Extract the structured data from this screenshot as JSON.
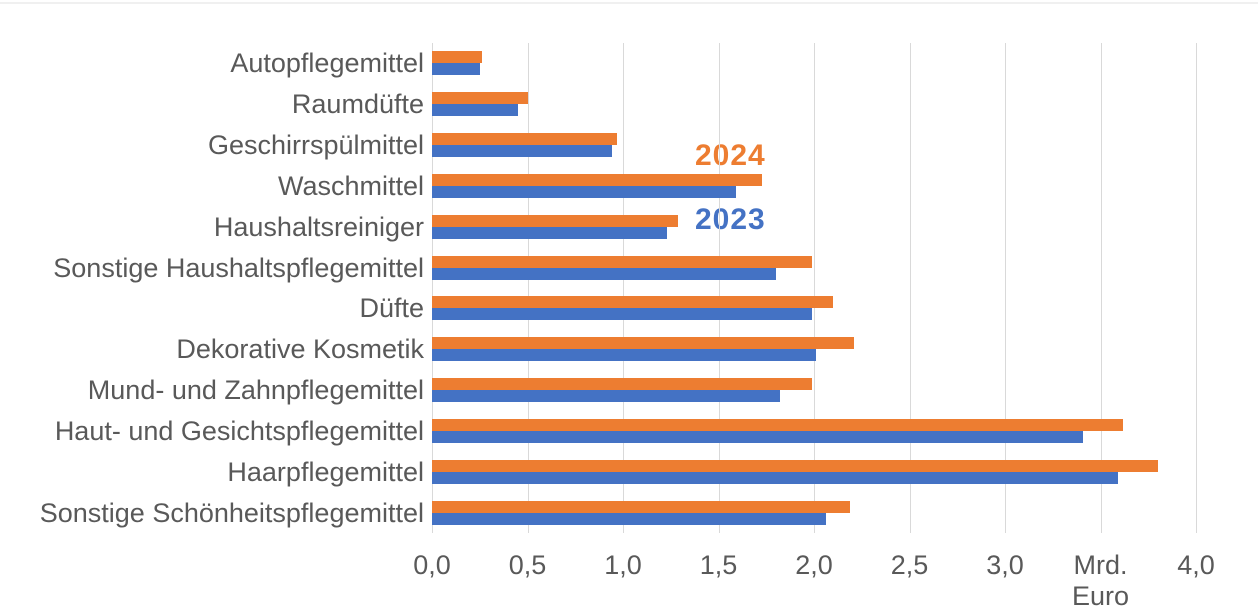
{
  "chart_data": {
    "type": "bar",
    "orientation": "horizontal",
    "title": "",
    "xlabel": "Mrd. Euro",
    "ylabel": "",
    "xlim": [
      0,
      4
    ],
    "grid": true,
    "legend_position": "inside-plot-upper-left",
    "categories": [
      "Autopflegemittel",
      "Raumdüfte",
      "Geschirrspülmittel",
      "Waschmittel",
      "Haushaltsreiniger",
      "Sonstige Haushaltspflegemittel",
      "Düfte",
      "Dekorative Kosmetik",
      "Mund- und Zahnpflegemittel",
      "Haut- und Gesichtspflegemittel",
      "Haarpflegemittel",
      "Sonstige Schönheitspflegemittel"
    ],
    "series": [
      {
        "name": "2024",
        "color": "#ED7D31",
        "values": [
          0.26,
          0.5,
          0.97,
          1.73,
          1.29,
          1.99,
          2.1,
          2.21,
          1.99,
          3.62,
          3.8,
          2.19
        ]
      },
      {
        "name": "2023",
        "color": "#4472C4",
        "values": [
          0.25,
          0.45,
          0.94,
          1.59,
          1.23,
          1.8,
          1.99,
          2.01,
          1.82,
          3.41,
          3.59,
          2.06
        ]
      }
    ],
    "xticks": [
      {
        "value": 0.0,
        "label": "0,0"
      },
      {
        "value": 0.5,
        "label": "0,5"
      },
      {
        "value": 1.0,
        "label": "1,0"
      },
      {
        "value": 1.5,
        "label": "1,5"
      },
      {
        "value": 2.0,
        "label": "2,0"
      },
      {
        "value": 2.5,
        "label": "2,5"
      },
      {
        "value": 3.0,
        "label": "3,0"
      },
      {
        "value": 3.5,
        "label": "Mrd.\nEuro"
      },
      {
        "value": 4.0,
        "label": "4,0"
      }
    ],
    "colors": {
      "grid": "#D9D9D9",
      "text": "#595959",
      "background": "#FFFFFF"
    }
  }
}
